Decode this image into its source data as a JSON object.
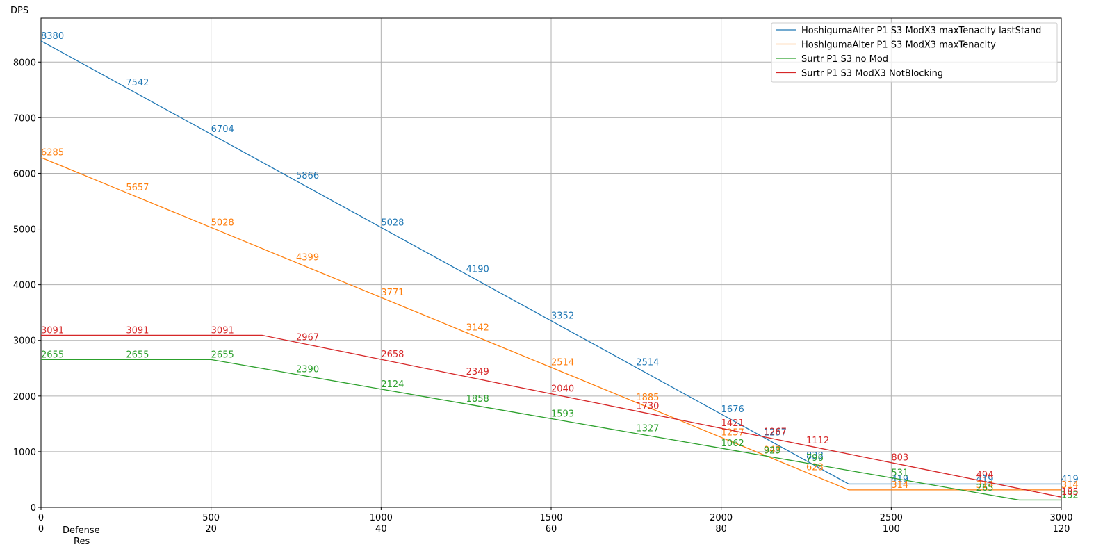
{
  "chart_data": {
    "type": "line",
    "ylabel": "DPS",
    "xlabel": "Defense",
    "x2label": "Res",
    "xlim": [
      0,
      3000
    ],
    "xticks": [
      0,
      500,
      1000,
      1500,
      2000,
      2500,
      3000
    ],
    "x2lim": [
      0,
      120
    ],
    "x2ticks": [
      0,
      20,
      40,
      60,
      80,
      100,
      120
    ],
    "ylim": [
      0,
      8790
    ],
    "yticks": [
      0,
      1000,
      2000,
      3000,
      4000,
      5000,
      6000,
      7000,
      8000
    ],
    "grid": true,
    "legend": "upper right",
    "series": [
      {
        "name": "HoshigumaAlter P1 S3 ModX3 maxTenacity lastStand",
        "color": "#1f77b4",
        "x": [
          0,
          250,
          500,
          750,
          1000,
          1250,
          1500,
          1750,
          2000,
          2125,
          2250,
          2375,
          2500,
          2750,
          3000
        ],
        "values": [
          8380,
          7542,
          6704,
          5866,
          5028,
          4190,
          3352,
          2514,
          1676,
          1257,
          838,
          419,
          419,
          419,
          419
        ],
        "value_labels": [
          "8380",
          "7542",
          "6704",
          "5866",
          "5028",
          "4190",
          "3352",
          "2514",
          "1676",
          "1257",
          "838",
          null,
          "419",
          "419",
          "419"
        ]
      },
      {
        "name": "HoshigumaAlter P1 S3 ModX3 maxTenacity",
        "color": "#ff7f0e",
        "x": [
          0,
          250,
          500,
          750,
          1000,
          1250,
          1500,
          1750,
          2000,
          2125,
          2250,
          2375,
          2500,
          2750,
          3000
        ],
        "values": [
          6285,
          5657,
          5028,
          4399,
          3771,
          3142,
          2514,
          1885,
          1257,
          943,
          628,
          314,
          314,
          314,
          314
        ],
        "value_labels": [
          "6285",
          "5657",
          "5028",
          "4399",
          "3771",
          "3142",
          "2514",
          "1885",
          "1257",
          "943",
          "628",
          null,
          "314",
          "314",
          "314"
        ]
      },
      {
        "name": "Surtr P1 S3 no Mod",
        "color": "#2ca02c",
        "x": [
          0,
          250,
          500,
          750,
          1000,
          1250,
          1500,
          1750,
          2000,
          2125,
          2250,
          2500,
          2750,
          2876,
          3000
        ],
        "values": [
          2655,
          2655,
          2655,
          2390,
          2124,
          1858,
          1593,
          1327,
          1062,
          929,
          796,
          531,
          265,
          132,
          132
        ],
        "value_labels": [
          "2655",
          "2655",
          "2655",
          "2390",
          "2124",
          "1858",
          "1593",
          "1327",
          "1062",
          "929",
          "796",
          "531",
          "265",
          null,
          "132"
        ]
      },
      {
        "name": "Surtr P1 S3 ModX3 NotBlocking",
        "color": "#d62728",
        "x": [
          0,
          250,
          500,
          650,
          750,
          1000,
          1250,
          1500,
          1750,
          2000,
          2125,
          2250,
          2500,
          2750,
          3000
        ],
        "values": [
          3091,
          3091,
          3091,
          3091,
          2967,
          2658,
          2349,
          2040,
          1730,
          1421,
          1267,
          1112,
          803,
          494,
          185
        ],
        "value_labels": [
          "3091",
          "3091",
          "3091",
          null,
          "2967",
          "2658",
          "2349",
          "2040",
          "1730",
          "1421",
          "1267",
          "1112",
          "803",
          "494",
          "185"
        ]
      }
    ]
  }
}
